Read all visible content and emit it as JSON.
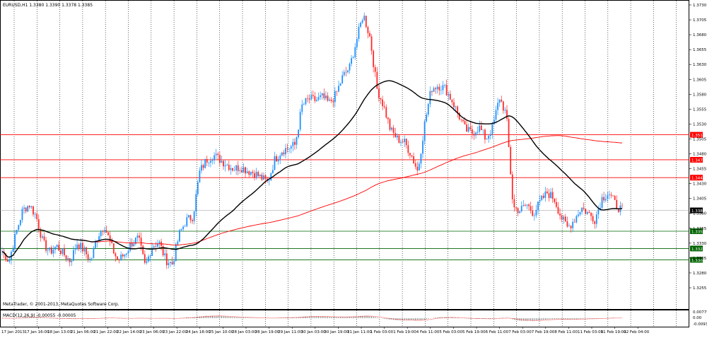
{
  "main_chart": {
    "header": "EURUSD,H1  1.3380 1.3390 1.3378 1.3385",
    "price_axis": [
      "1.3730",
      "1.3705",
      "1.3680",
      "1.3655",
      "1.3630",
      "1.3605",
      "1.3580",
      "1.3555",
      "1.3530",
      "1.3505",
      "1.3480",
      "1.3455",
      "1.3430",
      "1.3405",
      "1.3380",
      "1.3355",
      "1.3330",
      "1.3305",
      "1.3280",
      "1.3255"
    ],
    "current_price": "1.3385",
    "levels": [
      {
        "label": "1.3512",
        "value": 1.3512,
        "kind": "resistance"
      },
      {
        "label": "1.3470",
        "value": 1.347,
        "kind": "resistance"
      },
      {
        "label": "1.3440",
        "value": 1.344,
        "kind": "resistance"
      },
      {
        "label": "1.3350",
        "value": 1.335,
        "kind": "support"
      },
      {
        "label": "1.3321",
        "value": 1.3321,
        "kind": "support"
      },
      {
        "label": "1.3302",
        "value": 1.3302,
        "kind": "support"
      }
    ]
  },
  "macd_panel": {
    "header": "MACD(12,26,9) -0.00055 -0.00005",
    "axis": [
      "0.00775",
      "0.00",
      "-0.00935"
    ]
  },
  "time_axis": [
    "17 Jan 2013",
    "17 Jan 16:00",
    "18 Jan 13:00",
    "21 Jan 06:00",
    "21 Jan 22:00",
    "22 Jan 14:00",
    "23 Jan 06:00",
    "23 Jan 22:00",
    "24 Jan 18:00",
    "25 Jan 10:00",
    "28 Jan 03:00",
    "28 Jan 19:00",
    "29 Jan 11:00",
    "30 Jan 03:00",
    "30 Jan 19:00",
    "31 Jan 11:00",
    "1 Feb 03:00",
    "1 Feb 19:00",
    "4 Feb 11:00",
    "5 Feb 03:00",
    "5 Feb 19:00",
    "6 Feb 11:00",
    "7 Feb 03:00",
    "7 Feb 19:00",
    "8 Feb 11:00",
    "11 Feb 03:00",
    "11 Feb 19:00",
    "12 Feb 04:00"
  ],
  "footer": "MetaTrader, © 2001-2013, MetaQuotes Software Corp.",
  "colors": {
    "bull_candle": "#1e90ff",
    "bear_candle": "#ff2a2a",
    "resistance_line": "#ff0000",
    "support_line": "#006400",
    "ma_fast": "#000000",
    "ma_slow": "#ff0000",
    "macd_hist": "#808080",
    "macd_signal": "#ff0000"
  },
  "price_path": [
    1.3316,
    1.33,
    1.3345,
    1.3385,
    1.3395,
    1.3375,
    1.333,
    1.3315,
    1.3325,
    1.3312,
    1.33,
    1.333,
    1.3318,
    1.33,
    1.3342,
    1.336,
    1.3325,
    1.33,
    1.3312,
    1.333,
    1.3338,
    1.329,
    1.3325,
    1.3332,
    1.3302,
    1.3295,
    1.3345,
    1.3368,
    1.3375,
    1.345,
    1.347,
    1.3478,
    1.347,
    1.3462,
    1.3455,
    1.3458,
    1.3452,
    1.3448,
    1.344,
    1.3432,
    1.347,
    1.3485,
    1.349,
    1.3495,
    1.356,
    1.3572,
    1.357,
    1.3575,
    1.3565,
    1.358,
    1.361,
    1.3625,
    1.367,
    1.3715,
    1.3675,
    1.359,
    1.356,
    1.352,
    1.3505,
    1.35,
    1.348,
    1.345,
    1.353,
    1.359,
    1.3595,
    1.359,
    1.357,
    1.3545,
    1.352,
    1.3515,
    1.3525,
    1.3505,
    1.3525,
    1.3575,
    1.3545,
    1.339,
    1.3385,
    1.3395,
    1.338,
    1.34,
    1.3415,
    1.3405,
    1.3375,
    1.3355,
    1.337,
    1.339,
    1.338,
    1.337,
    1.3405,
    1.3415,
    1.3395,
    1.3385
  ]
}
